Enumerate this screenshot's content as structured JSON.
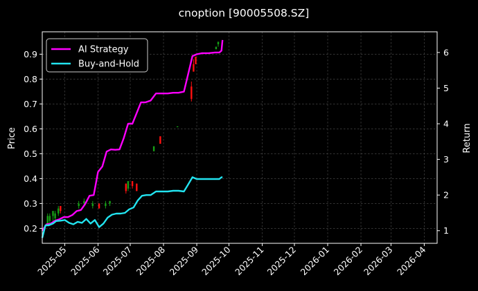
{
  "chart_data": {
    "type": "line",
    "title": "cnoption [90005508.SZ]",
    "ylabel": "Price",
    "y2label": "Return",
    "background": "#000000",
    "grid": true,
    "legend_position": "top-left",
    "x_ticks": [
      "2025-05",
      "2025-06",
      "2025-07",
      "2025-08",
      "2025-09",
      "2025-10",
      "2025-11",
      "2025-12",
      "2026-01",
      "2026-02",
      "2026-03",
      "2026-04"
    ],
    "xlim": [
      "2025-04-10",
      "2026-04-13"
    ],
    "ylim": [
      0.14,
      0.99
    ],
    "yticks": [
      0.2,
      0.3,
      0.4,
      0.5,
      0.6,
      0.7,
      0.8,
      0.9
    ],
    "y2lim": [
      0.646,
      6.58
    ],
    "y2ticks": [
      1,
      2,
      3,
      4,
      5,
      6
    ],
    "series": [
      {
        "name": "AI Strategy",
        "color": "#ff00ff",
        "axis": "right",
        "x": [
          "2025-04-10",
          "2025-04-14",
          "2025-04-18",
          "2025-04-22",
          "2025-04-26",
          "2025-04-30",
          "2025-05-04",
          "2025-05-08",
          "2025-05-12",
          "2025-05-16",
          "2025-05-20",
          "2025-05-24",
          "2025-05-28",
          "2025-06-01",
          "2025-06-05",
          "2025-06-09",
          "2025-06-13",
          "2025-06-17",
          "2025-06-21",
          "2025-06-25",
          "2025-06-29",
          "2025-07-03",
          "2025-07-07",
          "2025-07-11",
          "2025-07-15",
          "2025-07-20",
          "2025-07-25",
          "2025-07-30",
          "2025-08-05",
          "2025-08-10",
          "2025-08-15",
          "2025-08-20",
          "2025-08-24",
          "2025-08-28",
          "2025-09-01",
          "2025-09-06",
          "2025-09-12",
          "2025-09-18",
          "2025-09-22",
          "2025-09-24",
          "2025-09-25"
        ],
        "y": [
          1.0,
          1.18,
          1.2,
          1.28,
          1.32,
          1.38,
          1.38,
          1.44,
          1.55,
          1.58,
          1.75,
          1.98,
          2.0,
          2.65,
          2.8,
          3.22,
          3.28,
          3.27,
          3.28,
          3.6,
          4.0,
          4.0,
          4.3,
          4.6,
          4.6,
          4.65,
          4.85,
          4.85,
          4.85,
          4.87,
          4.87,
          4.9,
          5.4,
          5.9,
          5.95,
          5.98,
          5.98,
          6.0,
          6.0,
          6.05,
          6.35
        ]
      },
      {
        "name": "Buy-and-Hold",
        "color": "#22e4f0",
        "axis": "right",
        "x": [
          "2025-04-10",
          "2025-04-13",
          "2025-04-16",
          "2025-04-20",
          "2025-04-23",
          "2025-04-27",
          "2025-05-01",
          "2025-05-05",
          "2025-05-09",
          "2025-05-13",
          "2025-05-17",
          "2025-05-21",
          "2025-05-25",
          "2025-05-29",
          "2025-06-02",
          "2025-06-06",
          "2025-06-10",
          "2025-06-14",
          "2025-06-18",
          "2025-06-22",
          "2025-06-26",
          "2025-06-30",
          "2025-07-04",
          "2025-07-08",
          "2025-07-12",
          "2025-07-16",
          "2025-07-20",
          "2025-07-25",
          "2025-07-30",
          "2025-08-05",
          "2025-08-10",
          "2025-08-15",
          "2025-08-20",
          "2025-08-24",
          "2025-08-28",
          "2025-09-01",
          "2025-09-06",
          "2025-09-12",
          "2025-09-18",
          "2025-09-22",
          "2025-09-24",
          "2025-09-25"
        ],
        "y": [
          0.8,
          1.15,
          1.15,
          1.2,
          1.27,
          1.28,
          1.3,
          1.22,
          1.18,
          1.25,
          1.22,
          1.33,
          1.2,
          1.3,
          1.1,
          1.2,
          1.37,
          1.45,
          1.48,
          1.48,
          1.5,
          1.6,
          1.65,
          1.85,
          1.98,
          2.0,
          2.0,
          2.1,
          2.1,
          2.1,
          2.12,
          2.12,
          2.1,
          2.3,
          2.5,
          2.45,
          2.45,
          2.45,
          2.45,
          2.45,
          2.5,
          2.5
        ]
      }
    ],
    "candles": [
      {
        "x": "2025-04-15",
        "open": 0.22,
        "close": 0.25,
        "low": 0.21,
        "high": 0.26
      },
      {
        "x": "2025-04-17",
        "open": 0.23,
        "close": 0.25,
        "low": 0.22,
        "high": 0.26
      },
      {
        "x": "2025-04-20",
        "open": 0.25,
        "close": 0.27,
        "low": 0.23,
        "high": 0.27
      },
      {
        "x": "2025-04-22",
        "open": 0.24,
        "close": 0.26,
        "low": 0.23,
        "high": 0.27
      },
      {
        "x": "2025-04-25",
        "open": 0.26,
        "close": 0.28,
        "low": 0.25,
        "high": 0.29
      },
      {
        "x": "2025-04-27",
        "open": 0.29,
        "close": 0.27,
        "low": 0.26,
        "high": 0.29
      },
      {
        "x": "2025-05-14",
        "open": 0.29,
        "close": 0.3,
        "low": 0.28,
        "high": 0.31
      },
      {
        "x": "2025-05-19",
        "open": 0.3,
        "close": 0.31,
        "low": 0.29,
        "high": 0.32
      },
      {
        "x": "2025-05-27",
        "open": 0.29,
        "close": 0.3,
        "low": 0.28,
        "high": 0.31
      },
      {
        "x": "2025-06-02",
        "open": 0.3,
        "close": 0.28,
        "low": 0.28,
        "high": 0.3
      },
      {
        "x": "2025-06-08",
        "open": 0.29,
        "close": 0.3,
        "low": 0.28,
        "high": 0.31
      },
      {
        "x": "2025-06-12",
        "open": 0.3,
        "close": 0.31,
        "low": 0.29,
        "high": 0.31
      },
      {
        "x": "2025-06-27",
        "open": 0.38,
        "close": 0.35,
        "low": 0.34,
        "high": 0.38
      },
      {
        "x": "2025-06-29",
        "open": 0.36,
        "close": 0.39,
        "low": 0.35,
        "high": 0.39
      },
      {
        "x": "2025-07-03",
        "open": 0.39,
        "close": 0.37,
        "low": 0.36,
        "high": 0.39
      },
      {
        "x": "2025-07-07",
        "open": 0.38,
        "close": 0.35,
        "low": 0.35,
        "high": 0.38
      },
      {
        "x": "2025-07-23",
        "open": 0.51,
        "close": 0.53,
        "low": 0.51,
        "high": 0.53
      },
      {
        "x": "2025-07-29",
        "open": 0.57,
        "close": 0.54,
        "low": 0.54,
        "high": 0.57
      },
      {
        "x": "2025-08-14",
        "open": 0.61,
        "close": 0.61,
        "low": 0.61,
        "high": 0.61
      },
      {
        "x": "2025-08-27",
        "open": 0.77,
        "close": 0.72,
        "low": 0.71,
        "high": 0.79
      },
      {
        "x": "2025-08-29",
        "open": 0.86,
        "close": 0.83,
        "low": 0.83,
        "high": 0.88
      },
      {
        "x": "2025-08-31",
        "open": 0.89,
        "close": 0.86,
        "low": 0.86,
        "high": 0.89
      },
      {
        "x": "2025-09-19",
        "open": 0.92,
        "close": 0.93,
        "low": 0.92,
        "high": 0.93
      },
      {
        "x": "2025-09-21",
        "open": 0.94,
        "close": 0.95,
        "low": 0.93,
        "high": 0.95
      }
    ],
    "up_color": "#16a016",
    "down_color": "#ff1010"
  }
}
